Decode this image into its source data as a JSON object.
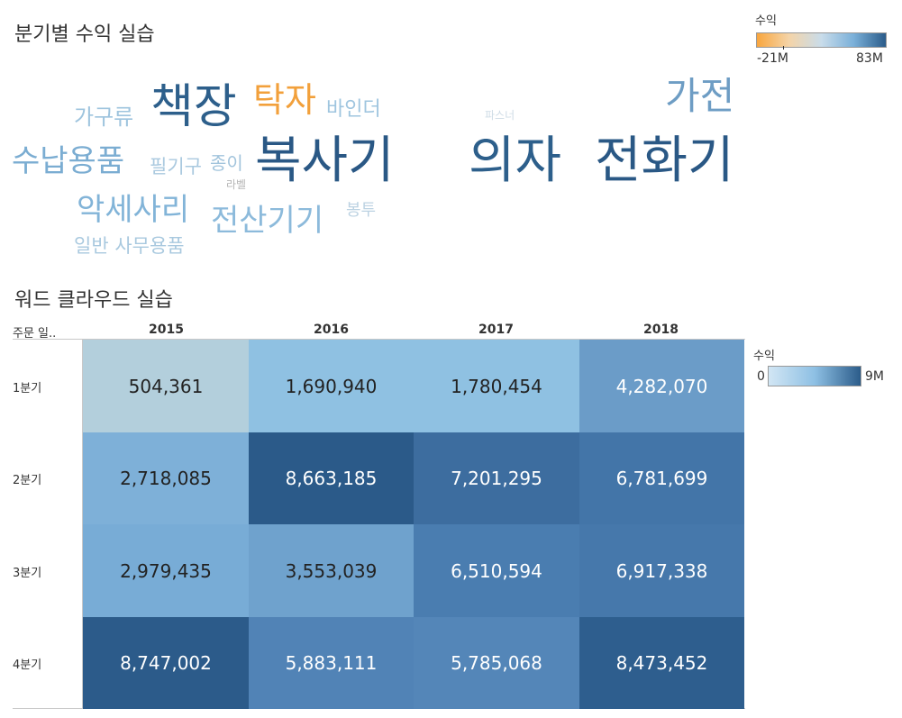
{
  "wordcloud": {
    "title": "분기별 수익 실습",
    "legend": {
      "title": "수익",
      "min_label": "-21M",
      "max_label": "83M",
      "gradient": [
        "#f9a63e",
        "#f4d4a8",
        "#c9dcea",
        "#7ab0d9",
        "#2b5c8a"
      ]
    },
    "words": [
      {
        "text": "책장",
        "color": "#2d5f8b"
      },
      {
        "text": "탁자",
        "color": "#f2a03b"
      },
      {
        "text": "바인더",
        "color": "#9fc5df"
      },
      {
        "text": "가구류",
        "color": "#9ec4de"
      },
      {
        "text": "가전",
        "color": "#6e9dc4"
      },
      {
        "text": "파스너",
        "color": "#cfdce6"
      },
      {
        "text": "수납용품",
        "color": "#7badd2"
      },
      {
        "text": "필기구",
        "color": "#aac9df"
      },
      {
        "text": "종이",
        "color": "#a2c4dc"
      },
      {
        "text": "라벨",
        "color": "#b5b5b5"
      },
      {
        "text": "복사기",
        "color": "#2a5885"
      },
      {
        "text": "의자",
        "color": "#2d5f8b"
      },
      {
        "text": "전화기",
        "color": "#2a5885"
      },
      {
        "text": "악세사리",
        "color": "#82b4d8"
      },
      {
        "text": "전산기기",
        "color": "#8cbadb"
      },
      {
        "text": "봉투",
        "color": "#bcd2e2"
      },
      {
        "text": "일반 사무용품",
        "color": "#a9c9df"
      }
    ]
  },
  "heatmap": {
    "title": "워드 클라우드 실습",
    "row_header": "주문 일..",
    "legend": {
      "title": "수익",
      "min_label": "0",
      "max_label": "9M",
      "gradient": [
        "#d2e6f4",
        "#8ec0e4",
        "#2b5c8a"
      ]
    },
    "chart_data": {
      "type": "heatmap",
      "title": "워드 클라우드 실습",
      "columns": [
        "2015",
        "2016",
        "2017",
        "2018"
      ],
      "rows": [
        "1분기",
        "2분기",
        "3분기",
        "4분기"
      ],
      "labels": [
        [
          "504,361",
          "1,690,940",
          "1,780,454",
          "4,282,070"
        ],
        [
          "2,718,085",
          "8,663,185",
          "7,201,295",
          "6,781,699"
        ],
        [
          "2,979,435",
          "3,553,039",
          "6,510,594",
          "6,917,338"
        ],
        [
          "8,747,002",
          "5,883,111",
          "5,785,068",
          "8,473,452"
        ]
      ],
      "values": [
        [
          504361,
          1690940,
          1780454,
          4282070
        ],
        [
          2718085,
          8663185,
          7201295,
          6781699
        ],
        [
          2979435,
          3553039,
          6510594,
          6917338
        ],
        [
          8747002,
          5883111,
          5785068,
          8473452
        ]
      ],
      "colors": [
        [
          "#b3cfdc",
          "#8fc1e2",
          "#8fc1e2",
          "#6b9cc8"
        ],
        [
          "#7eb0d8",
          "#2b5a89",
          "#3d6d9f",
          "#4375a8"
        ],
        [
          "#78acd6",
          "#6fa2cd",
          "#4a7db0",
          "#4678ab"
        ],
        [
          "#2c5b8a",
          "#5183b6",
          "#5486b8",
          "#2e5e8e"
        ]
      ]
    }
  }
}
